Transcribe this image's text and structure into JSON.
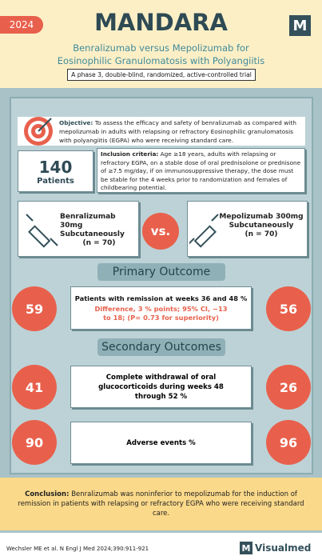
{
  "header": {
    "year": "2024",
    "title": "MANDARA",
    "logo": "M",
    "subtitle": "Benralizumab versus Mepolizumab for Eosinophilic Granulomatosis with Polyangiitis",
    "design": "A phase 3, double-blind, randomized, active-controlled trial"
  },
  "objective": {
    "label": "Objective:",
    "text": "To assess the efficacy and safety of benralizumab as compared with mepolizumab in adults with relapsing or refractory Eosinophilic granulomatosis with polyangiitis (EGPA) who were receiving standard care."
  },
  "patients": {
    "count": 140,
    "label": "Patients"
  },
  "inclusion": {
    "label": "Inclusion criteria:",
    "text": "Age ≥18 years, adults with relapsing or refractory EGPA, on a stable dose of oral prednisolone or prednisone of ≥7.5 mg/day, if on immunosuppressive therapy, the dose must be stable for the 4 weeks prior to randomization and females of childbearing potential."
  },
  "arms": [
    {
      "name": "Benralizumab 30mg Subcutaneously",
      "n": "(n = 70)"
    },
    {
      "name": "Mepolizumab 300mg Subcutaneously",
      "n": "(n = 70)"
    }
  ],
  "vs": "vs.",
  "primary": {
    "heading": "Primary Outcome",
    "outcome": "Patients with remission at weeks 36 and 48 %",
    "detail": "Difference, 3 % points; 95% CI, −13 to 18; (P= 0.73 for superiority)",
    "values": [
      59,
      56
    ]
  },
  "secondary": {
    "heading": "Secondary Outcomes",
    "rows": [
      {
        "outcome": "Complete withdrawal of oral glucocorticoids during weeks 48 through 52 %",
        "values": [
          41,
          26
        ]
      },
      {
        "outcome": "Adverse events %",
        "values": [
          90,
          96
        ]
      }
    ]
  },
  "conclusion": {
    "label": "Conclusion:",
    "text": "Benralizumab was noninferior to mepolizumab for the induction of remission in patients with relapsing or refractory EGPA who were receiving standard care."
  },
  "footer": {
    "citation": "Wechsler ME et al. N Engl J Med 2024;390:911-921",
    "brand": "Visualmed",
    "brand_logo": "M"
  }
}
